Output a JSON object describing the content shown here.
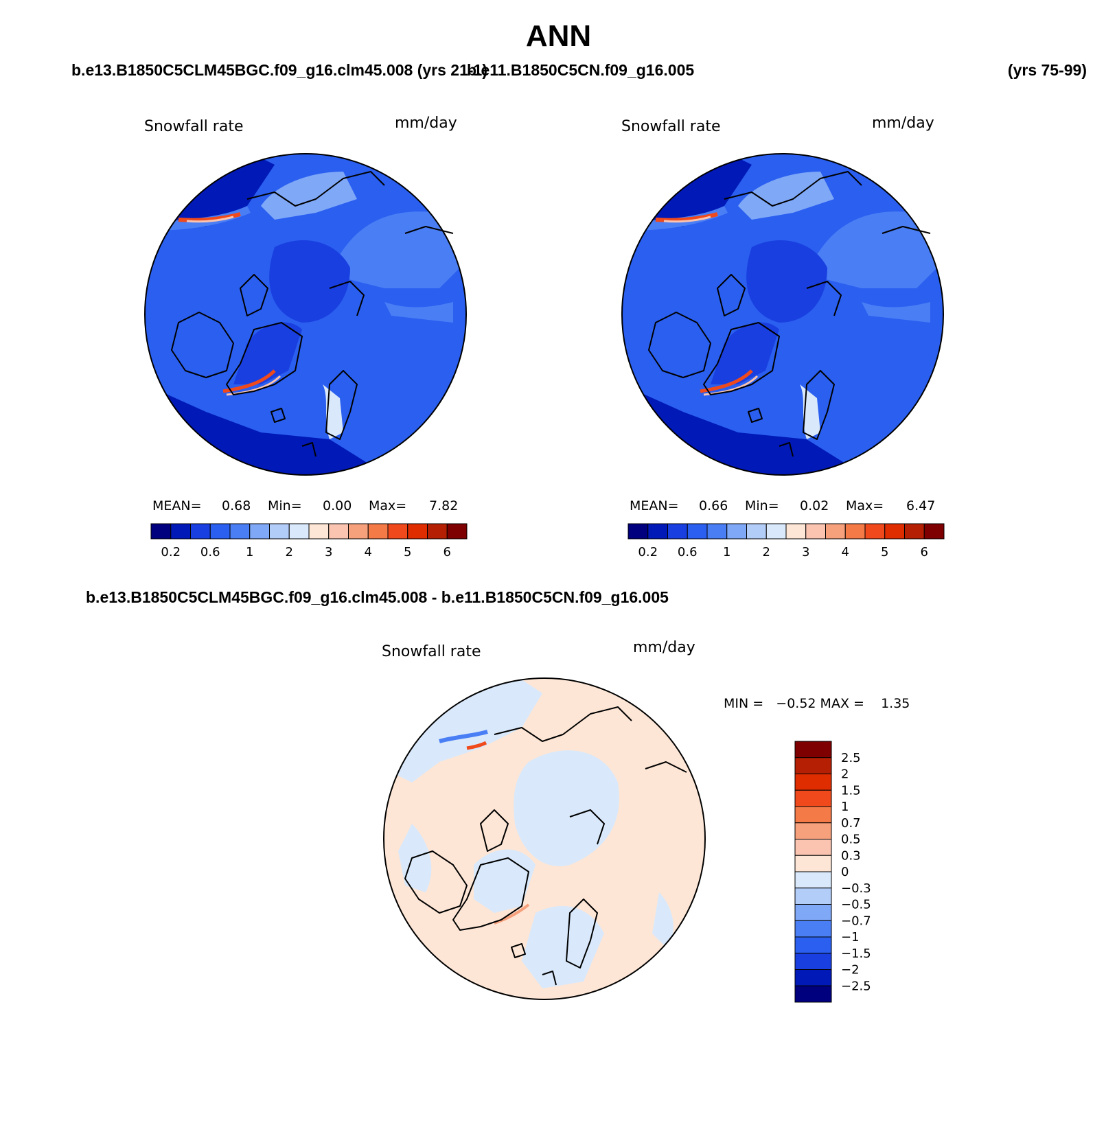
{
  "title": "ANN",
  "panels": [
    {
      "case": "b.e13.B1850C5CLM45BGC.f09_g16.clm45.008 (yrs 21-1)",
      "variable": "Snowfall rate",
      "units": "mm/day",
      "stats": {
        "mean_label": "MEAN=",
        "mean": "0.68",
        "min_label": "Min=",
        "min": "0.00",
        "max_label": "Max=",
        "max": "7.82"
      }
    },
    {
      "case": "b.e11.B1850C5CN.f09_g16.005",
      "years": "(yrs 75-99)",
      "variable": "Snowfall rate",
      "units": "mm/day",
      "stats": {
        "mean_label": "MEAN=",
        "mean": "0.66",
        "min_label": "Min=",
        "min": "0.02",
        "max_label": "Max=",
        "max": "6.47"
      }
    },
    {
      "case": "b.e13.B1850C5CLM45BGC.f09_g16.clm45.008 - b.e11.B1850C5CN.f09_g16.005",
      "variable": "Snowfall rate",
      "units": "mm/day",
      "stats_line": "MIN =   −0.52 MAX =    1.35"
    }
  ],
  "colorbar_abs": {
    "colors": [
      "#00007f",
      "#0019b7",
      "#1a3fe0",
      "#2a5ff0",
      "#4a7ef5",
      "#7fa8f7",
      "#b3cdf9",
      "#d9e9fb",
      "#fde6d6",
      "#fac4b0",
      "#f6a07c",
      "#f47a48",
      "#f04a1c",
      "#e02d00",
      "#b52004",
      "#7f0000"
    ],
    "ticks": [
      "0.2",
      "0.6",
      "1",
      "2",
      "3",
      "4",
      "5",
      "6"
    ]
  },
  "colorbar_diff": {
    "colors_top_to_bottom": [
      "#7f0000",
      "#b52004",
      "#e02d00",
      "#f04a1c",
      "#f47a48",
      "#f6a07c",
      "#fac4b0",
      "#fde6d6",
      "#d9e9fb",
      "#b3cdf9",
      "#7fa8f7",
      "#4a7ef5",
      "#2a5ff0",
      "#1a3fe0",
      "#0019b7",
      "#00007f"
    ],
    "ticks_top_to_bottom": [
      "2.5",
      "2",
      "1.5",
      "1",
      "0.7",
      "0.5",
      "0.3",
      "0",
      "−0.3",
      "−0.5",
      "−0.7",
      "−1",
      "−1.5",
      "−2",
      "−2.5"
    ]
  }
}
